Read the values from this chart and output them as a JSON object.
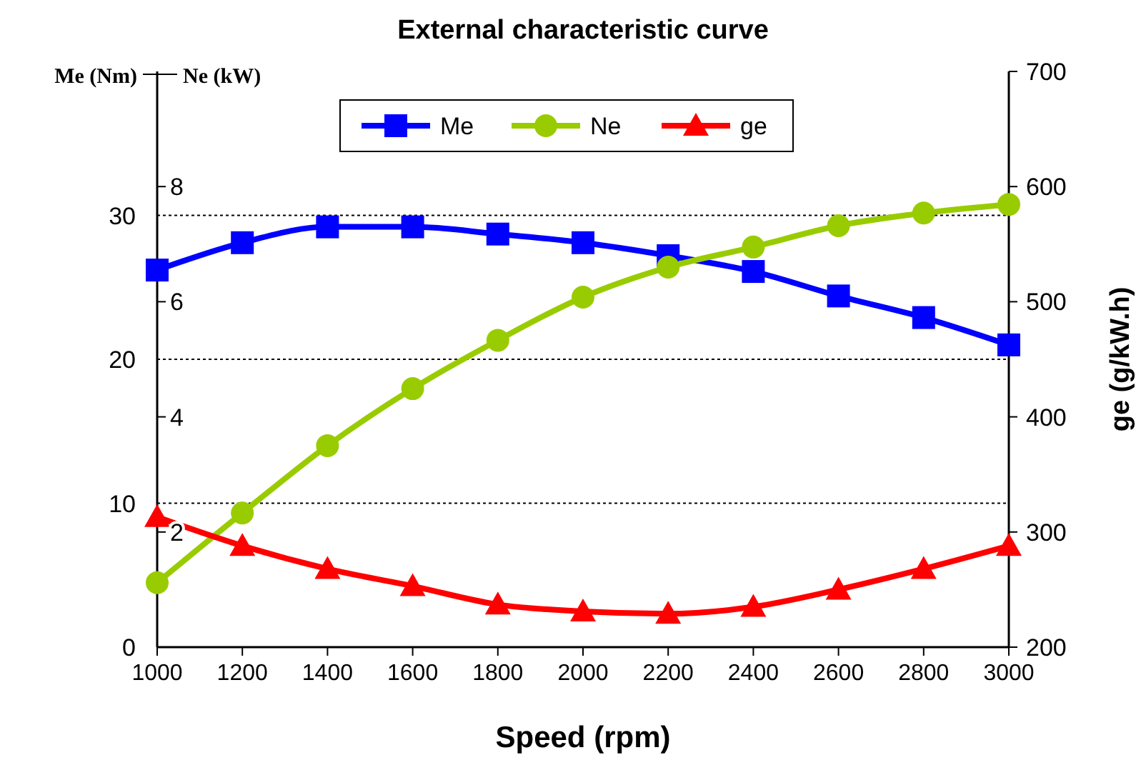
{
  "chart_data": {
    "type": "line",
    "title": "External characteristic curve",
    "xlabel": "Speed (rpm)",
    "ylabel": "Me (Nm)",
    "y3label": "Ne (kW)",
    "y2label": "ge (g/kW.h)",
    "x": [
      1000,
      1200,
      1400,
      1600,
      1800,
      2000,
      2200,
      2400,
      2600,
      2800,
      3000
    ],
    "xlim": [
      1000,
      3000
    ],
    "xticks": [
      1000,
      1200,
      1400,
      1600,
      1800,
      2000,
      2200,
      2400,
      2600,
      2800,
      3000
    ],
    "ylim": [
      0,
      40
    ],
    "yticks": [
      0,
      10,
      20,
      30
    ],
    "y3lim": [
      0,
      10
    ],
    "y3ticks": [
      2,
      4,
      6,
      8
    ],
    "y2lim": [
      200,
      700
    ],
    "y2ticks": [
      200,
      300,
      400,
      500,
      600,
      700
    ],
    "grid": "y",
    "legend": "top",
    "series": [
      {
        "name": "Me",
        "color": "#0000ff",
        "marker": "square",
        "values": [
          26.2,
          28.1,
          29.2,
          29.2,
          28.7,
          28.1,
          27.2,
          26.1,
          24.4,
          22.9,
          21.0
        ]
      },
      {
        "name": "Ne",
        "color": "#99cc00",
        "marker": "circle",
        "axis": "y3",
        "values": [
          1.12,
          2.33,
          3.5,
          4.49,
          5.33,
          6.08,
          6.6,
          6.95,
          7.32,
          7.54,
          7.69
        ]
      },
      {
        "name": "ge",
        "color": "#ff0000",
        "marker": "triangle",
        "axis": "y2",
        "values": [
          313,
          288,
          268,
          253,
          237,
          231,
          229,
          235,
          250,
          268,
          288
        ]
      }
    ]
  }
}
